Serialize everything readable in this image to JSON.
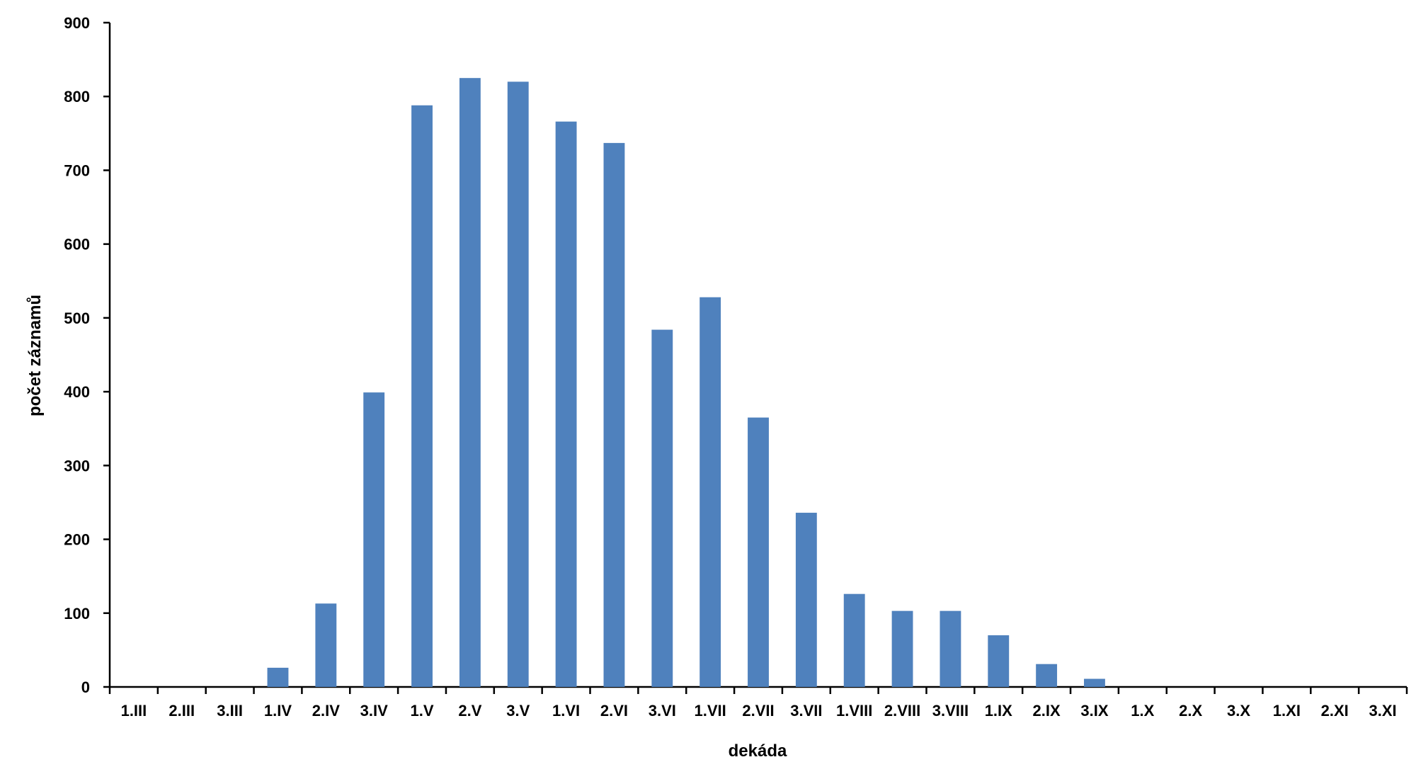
{
  "chart_data": {
    "type": "bar",
    "title": "",
    "xlabel": "dekáda",
    "ylabel": "počet záznamů",
    "ylim": [
      0,
      900
    ],
    "yticks": [
      0,
      100,
      200,
      300,
      400,
      500,
      600,
      700,
      800,
      900
    ],
    "grid": false,
    "legend": "none",
    "bar_color": "#4f81bd",
    "categories": [
      "1.III",
      "2.III",
      "3.III",
      "1.IV",
      "2.IV",
      "3.IV",
      "1.V",
      "2.V",
      "3.V",
      "1.VI",
      "2.VI",
      "3.VI",
      "1.VII",
      "2.VII",
      "3.VII",
      "1.VIII",
      "2.VIII",
      "3.VIII",
      "1.IX",
      "2.IX",
      "3.IX",
      "1.X",
      "2.X",
      "3.X",
      "1.XI",
      "2.XI",
      "3.XI"
    ],
    "values": [
      0,
      0,
      0,
      26,
      113,
      399,
      788,
      825,
      820,
      766,
      737,
      484,
      528,
      365,
      236,
      126,
      103,
      103,
      70,
      31,
      11,
      0,
      0,
      0,
      0,
      0,
      0
    ]
  }
}
